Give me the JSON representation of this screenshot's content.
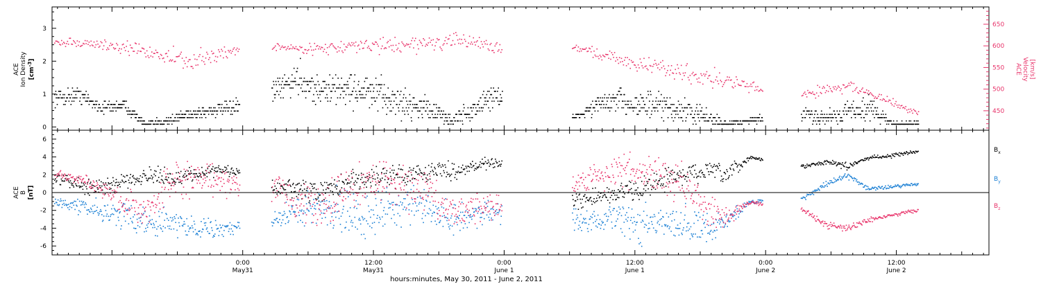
{
  "figure": {
    "x_axis_title": "hours:minutes, May 30, 2011 - June  2, 2011",
    "x_ticks": [
      {
        "time_h": -48,
        "line1": "0:00",
        "line2": "May31"
      },
      {
        "time_h": -36,
        "line1": "12:00",
        "line2": "May31"
      },
      {
        "time_h": -24,
        "line1": "0:00",
        "line2": "June 1"
      },
      {
        "time_h": -12,
        "line1": "12:00",
        "line2": "June 1"
      },
      {
        "time_h": 0,
        "line1": "0:00",
        "line2": "June 2"
      },
      {
        "time_h": 12,
        "line1": "12:00",
        "line2": "June 2"
      }
    ],
    "x_range_h": [
      -65.5,
      20.5
    ],
    "gap_intervals_h": [
      [
        -48.3,
        -45.4
      ],
      [
        -24.2,
        -17.8
      ],
      [
        -0.3,
        3.2
      ],
      [
        14.3,
        20.5
      ]
    ],
    "colors": {
      "black": "#000000",
      "pink": "#e8336a",
      "blue": "#1a7fd4"
    }
  },
  "chart_data": [
    {
      "type": "scatter",
      "panel": "plasma",
      "ylabel_line1": "ACE",
      "ylabel_line2": "Ion Density",
      "ylabel_unit": "[cm",
      "ylabel_unit_sup": "-3",
      "ylabel_unit_end": "]",
      "ylim": [
        -0.1,
        3.65
      ],
      "yticks": [
        "0",
        "1",
        "2",
        "3"
      ],
      "y2label_line1": "ACE",
      "y2label_line2": "Velocity",
      "y2label_unit": "[km/s]",
      "y2lim": [
        405,
        690
      ],
      "y2ticks": [
        "450",
        "500",
        "550",
        "600",
        "650"
      ],
      "series": [
        {
          "color": "black",
          "axis": "left",
          "x": [
            -65,
            -63,
            -61,
            -59,
            -57,
            -55,
            -53,
            -51,
            -49,
            -45,
            -43,
            -41,
            -39,
            -37,
            -35,
            -33,
            -31,
            -29,
            -27,
            -25,
            -17.5,
            -15.5,
            -13.5,
            -11.5,
            -9.5,
            -7.5,
            -5.5,
            -3.5,
            -1.5,
            3.5,
            5.5,
            7.5,
            9.5,
            11.5,
            13.5
          ],
          "y": [
            0.9,
            1.0,
            0.6,
            0.7,
            0.1,
            0.2,
            0.4,
            0.5,
            0.6,
            1.1,
            1.5,
            1.1,
            1.2,
            1.1,
            0.9,
            0.7,
            0.6,
            0.2,
            0.5,
            1.0,
            0.3,
            0.7,
            0.8,
            0.7,
            0.6,
            0.5,
            0.3,
            0.1,
            0.2,
            0.4,
            0.3,
            0.5,
            0.6,
            0.1,
            0.1
          ],
          "spread": [
            0.35,
            0.35,
            0.25,
            0.3,
            0.1,
            0.2,
            0.25,
            0.3,
            0.3,
            0.5,
            0.8,
            0.6,
            0.7,
            0.8,
            0.8,
            0.6,
            0.5,
            0.3,
            0.5,
            0.6,
            0.1,
            0.4,
            0.6,
            0.6,
            0.6,
            0.5,
            0.4,
            0.15,
            0.15,
            0.3,
            0.35,
            0.5,
            0.5,
            0.15,
            0.15
          ]
        },
        {
          "color": "pink",
          "axis": "right",
          "x": [
            -65,
            -63,
            -61,
            -59,
            -57,
            -55,
            -53,
            -51,
            -49,
            -45,
            -43,
            -41,
            -39,
            -37,
            -35,
            -33,
            -31,
            -29,
            -27,
            -25,
            -17.5,
            -15.5,
            -13.5,
            -11.5,
            -9.5,
            -7.5,
            -5.5,
            -3.5,
            -1.5,
            3.5,
            5.5,
            7.5,
            9.5,
            11.5,
            13.5
          ],
          "y": [
            610,
            608,
            604,
            596,
            590,
            578,
            562,
            575,
            590,
            600,
            594,
            596,
            598,
            601,
            602,
            604,
            608,
            610,
            612,
            598,
            598,
            584,
            570,
            558,
            550,
            540,
            530,
            520,
            505,
            490,
            500,
            510,
            490,
            470,
            450
          ],
          "spread": [
            12,
            14,
            15,
            20,
            25,
            30,
            35,
            30,
            25,
            12,
            15,
            18,
            20,
            22,
            25,
            28,
            30,
            25,
            20,
            22,
            15,
            20,
            25,
            25,
            28,
            30,
            30,
            30,
            25,
            18,
            20,
            22,
            18,
            15,
            12
          ]
        }
      ]
    },
    {
      "type": "scatter",
      "panel": "magnetic_field",
      "ylabel_line1": "ACE",
      "ylabel_line2": "B",
      "ylabel_unit": "[nT]",
      "ylim": [
        -7.0,
        7.0
      ],
      "yticks": [
        "-6",
        "-4",
        "-2",
        "0",
        "2",
        "4",
        "6"
      ],
      "zero_line": true,
      "legend": [
        {
          "label": "B",
          "sub": "x",
          "color": "black"
        },
        {
          "label": "B",
          "sub": "y",
          "color": "blue"
        },
        {
          "label": "B",
          "sub": "z",
          "color": "pink"
        }
      ],
      "series": [
        {
          "color": "black",
          "x": [
            -65,
            -63,
            -61,
            -59,
            -57,
            -55,
            -53,
            -51,
            -49,
            -45,
            -43,
            -41,
            -39,
            -37,
            -35,
            -33,
            -31,
            -29,
            -27,
            -25,
            -17.5,
            -15.5,
            -13.5,
            -11.5,
            -9.5,
            -7.5,
            -5.5,
            -3.5,
            -1.5,
            3.5,
            5.5,
            7.5,
            9.5,
            11.5,
            13.5
          ],
          "y": [
            1.5,
            1.0,
            0.5,
            1.5,
            2.0,
            1.5,
            2.0,
            2.5,
            2.5,
            0.5,
            0.5,
            0.0,
            1.0,
            1.5,
            2.0,
            2.0,
            2.5,
            2.5,
            3.0,
            3.5,
            -1.0,
            -0.5,
            0.0,
            0.5,
            1.5,
            2.0,
            2.5,
            2.0,
            4.0,
            3.0,
            3.5,
            3.0,
            4.0,
            4.2,
            4.6
          ],
          "spread": [
            1.0,
            1.2,
            1.2,
            1.2,
            1.5,
            1.5,
            1.2,
            1.0,
            0.8,
            1.2,
            1.5,
            1.8,
            1.8,
            1.8,
            1.8,
            1.5,
            1.5,
            1.5,
            1.2,
            0.8,
            1.2,
            1.5,
            1.8,
            1.8,
            1.8,
            1.8,
            1.5,
            1.5,
            0.3,
            0.3,
            0.4,
            0.5,
            0.3,
            0.3,
            0.3
          ]
        },
        {
          "color": "blue",
          "x": [
            -65,
            -63,
            -61,
            -59,
            -57,
            -55,
            -53,
            -51,
            -49,
            -45,
            -43,
            -41,
            -39,
            -37,
            -35,
            -33,
            -31,
            -29,
            -27,
            -25,
            -17.5,
            -15.5,
            -13.5,
            -11.5,
            -9.5,
            -7.5,
            -5.5,
            -3.5,
            -1.5,
            3.5,
            5.5,
            7.5,
            9.5,
            11.5,
            13.5
          ],
          "y": [
            -1.0,
            -1.5,
            -2.0,
            -2.5,
            -3.0,
            -3.5,
            -3.5,
            -4.0,
            -4.0,
            -3.0,
            -2.0,
            -1.5,
            -2.0,
            -2.5,
            -2.0,
            -1.5,
            -2.0,
            -3.0,
            -2.5,
            -2.0,
            -3.0,
            -3.0,
            -3.0,
            -3.5,
            -3.5,
            -3.5,
            -4.0,
            -3.0,
            -1.0,
            -0.5,
            1.0,
            2.0,
            0.5,
            0.7,
            1.0
          ],
          "spread": [
            1.0,
            1.2,
            1.5,
            2.0,
            2.5,
            2.5,
            2.0,
            1.5,
            1.0,
            1.5,
            2.5,
            3.0,
            3.5,
            3.5,
            3.5,
            3.5,
            3.0,
            2.5,
            2.5,
            2.0,
            1.5,
            2.0,
            2.5,
            3.0,
            3.0,
            3.0,
            2.5,
            1.5,
            0.3,
            0.4,
            0.5,
            0.6,
            0.4,
            0.3,
            0.3
          ]
        },
        {
          "color": "pink",
          "x": [
            -65,
            -63,
            -61,
            -59,
            -57,
            -55,
            -53,
            -51,
            -49,
            -45,
            -43,
            -41,
            -39,
            -37,
            -35,
            -33,
            -31,
            -29,
            -27,
            -25,
            -17.5,
            -15.5,
            -13.5,
            -11.5,
            -9.5,
            -7.5,
            -5.5,
            -3.5,
            -1.5,
            3.5,
            5.5,
            7.5,
            9.5,
            11.5,
            13.5
          ],
          "y": [
            2.0,
            1.5,
            0.5,
            -1.0,
            -2.0,
            0.5,
            1.5,
            1.5,
            1.0,
            0.5,
            -1.0,
            -2.0,
            0.0,
            1.0,
            1.5,
            1.0,
            0.0,
            -2.0,
            -1.5,
            -1.5,
            1.0,
            2.0,
            2.5,
            2.0,
            2.0,
            1.0,
            -2.0,
            -2.5,
            -1.0,
            -2.0,
            -3.5,
            -4.0,
            -3.0,
            -2.5,
            -2.0
          ],
          "spread": [
            0.8,
            1.0,
            1.5,
            2.0,
            2.5,
            3.0,
            3.0,
            2.5,
            2.0,
            2.0,
            3.0,
            3.5,
            3.5,
            3.5,
            3.5,
            3.5,
            3.5,
            3.0,
            2.5,
            2.5,
            2.0,
            2.5,
            3.0,
            3.0,
            3.0,
            3.0,
            2.5,
            1.5,
            0.3,
            0.5,
            0.6,
            0.5,
            0.4,
            0.3,
            0.3
          ]
        }
      ]
    }
  ]
}
